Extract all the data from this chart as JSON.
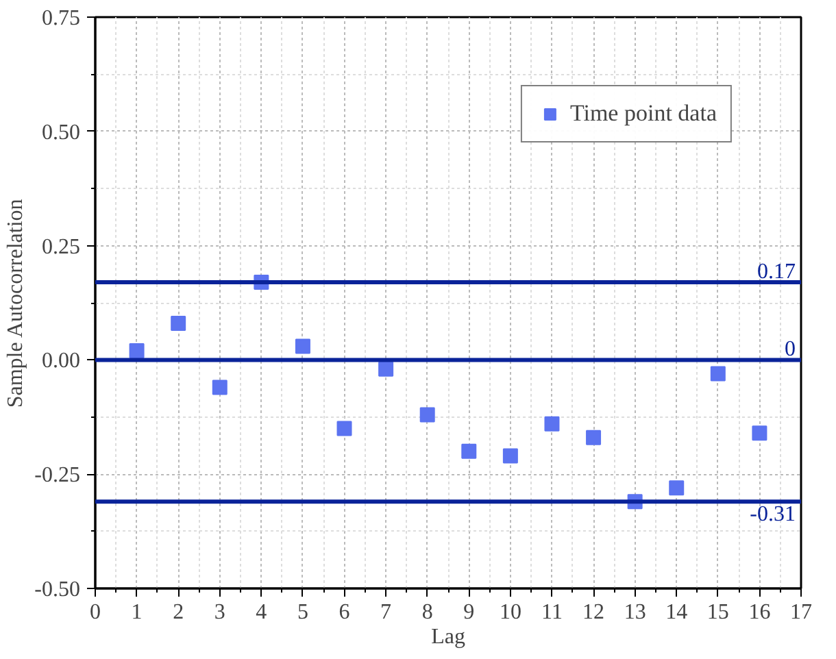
{
  "chart_data": {
    "type": "scatter",
    "xlabel": "Lag",
    "ylabel": "Sample Autocorrelation",
    "x": [
      1,
      2,
      3,
      4,
      5,
      6,
      7,
      8,
      9,
      10,
      11,
      12,
      13,
      14,
      15,
      16
    ],
    "series": [
      {
        "name": "Time point data",
        "color": "#5b73f0",
        "values": [
          0.02,
          0.08,
          -0.06,
          0.17,
          0.03,
          -0.15,
          -0.02,
          -0.12,
          -0.2,
          -0.21,
          -0.14,
          -0.17,
          -0.31,
          -0.28,
          -0.03,
          -0.16
        ]
      }
    ],
    "xlim": [
      0,
      17
    ],
    "xticks": [
      0,
      1,
      2,
      3,
      4,
      5,
      6,
      7,
      8,
      9,
      10,
      11,
      12,
      13,
      14,
      15,
      16,
      17
    ],
    "ylim": [
      -0.5,
      0.75
    ],
    "yticks": [
      {
        "value": -0.5,
        "label": "-0.50"
      },
      {
        "value": -0.25,
        "label": "-0.25"
      },
      {
        "value": 0,
        "label": "0.00"
      },
      {
        "value": 0.25,
        "label": "0.25"
      },
      {
        "value": 0.5,
        "label": "0.50"
      },
      {
        "value": 0.75,
        "label": "0.75"
      }
    ],
    "ref_lines": [
      {
        "axis": "y",
        "value": 0.17,
        "label": "0.17",
        "color": "#0a2399"
      },
      {
        "axis": "y",
        "value": 0,
        "label": "0",
        "color": "#0a2399"
      },
      {
        "axis": "y",
        "value": -0.31,
        "label": "-0.31",
        "color": "#0a2399"
      }
    ],
    "grid": true,
    "legend": "top right",
    "marker": "square"
  }
}
